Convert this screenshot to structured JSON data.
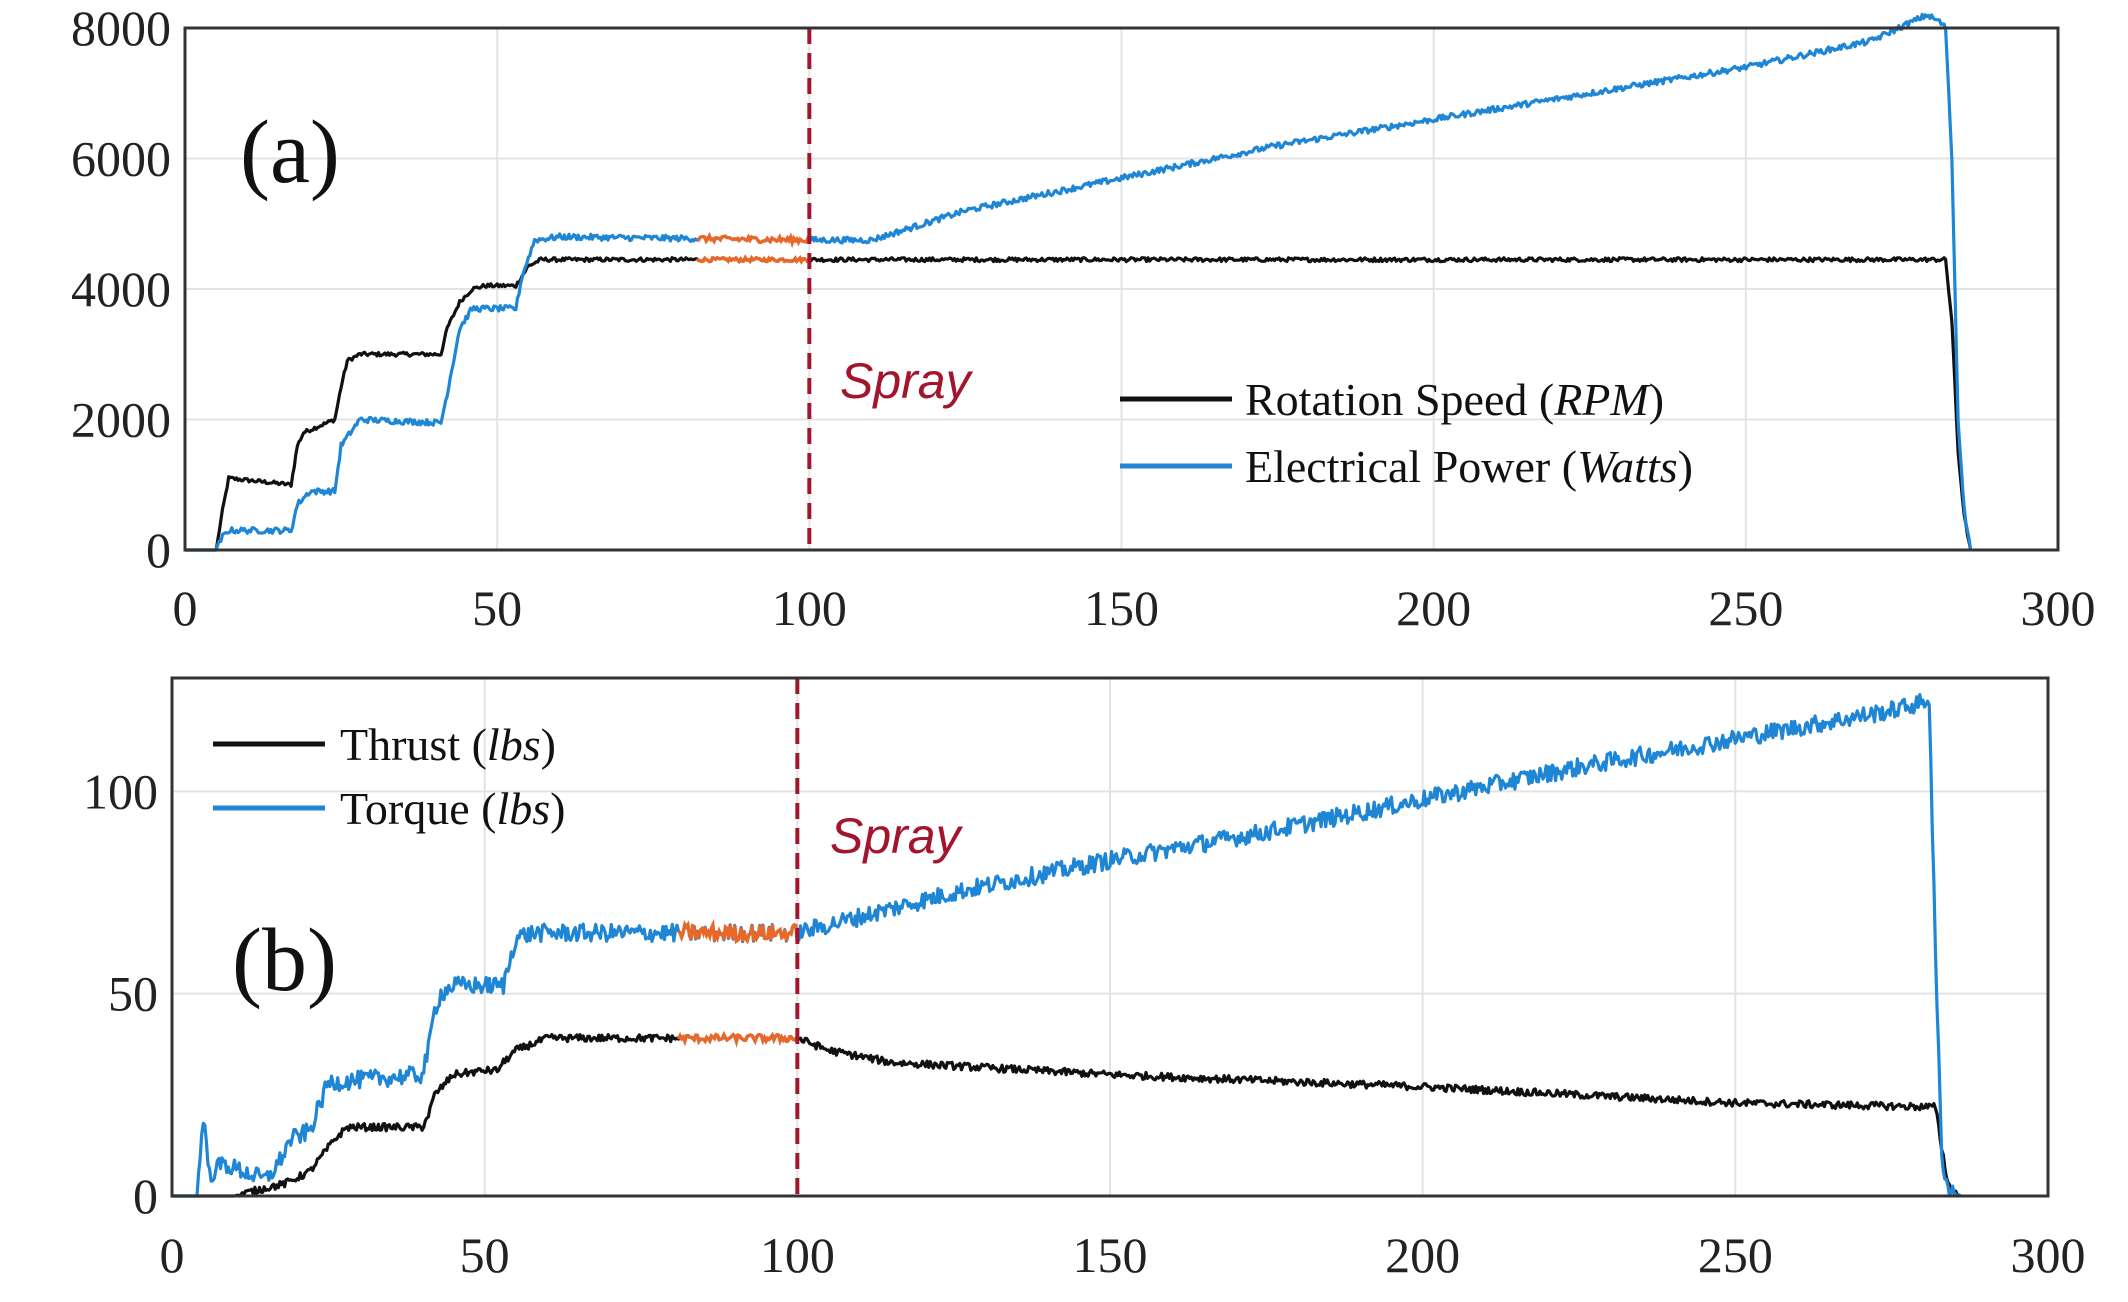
{
  "colors": {
    "black_series": "#111111",
    "blue_series": "#1f86d6",
    "spray_highlight": "#e8682a",
    "spray_line": "#a3142d",
    "grid": "#e3e3e3"
  },
  "chart_data": [
    {
      "type": "line",
      "panel_label": "(a)",
      "xlim": [
        0,
        300
      ],
      "ylim": [
        0,
        8000
      ],
      "xticks": [
        "0",
        "50",
        "100",
        "150",
        "200",
        "250",
        "300"
      ],
      "yticks": [
        "0",
        "2000",
        "4000",
        "6000",
        "8000"
      ],
      "grid": true,
      "legend": {
        "placement": "center-right",
        "entries": [
          {
            "label": "Rotation Speed (",
            "unit": "RPM",
            "close": ")",
            "series": "black"
          },
          {
            "label": "Electrical Power (",
            "unit": "Watts",
            "close": ")",
            "series": "blue"
          }
        ]
      },
      "annotation": {
        "text": "Spray",
        "x": 100
      },
      "highlight_range": [
        82,
        100
      ],
      "series": [
        {
          "name": "Rotation Speed (RPM)",
          "color_key": "black",
          "x": [
            0,
            5,
            6,
            7,
            17,
            18,
            19,
            24,
            25,
            26,
            28,
            41,
            42,
            44,
            46,
            48,
            53,
            54,
            55,
            57,
            60,
            100,
            150,
            200,
            250,
            282,
            283,
            284,
            285,
            286
          ],
          "y": [
            0,
            0,
            600,
            1100,
            1000,
            1600,
            1800,
            2000,
            2500,
            2900,
            3000,
            3000,
            3400,
            3800,
            4000,
            4050,
            4050,
            4200,
            4350,
            4450,
            4450,
            4450,
            4450,
            4450,
            4450,
            4450,
            3500,
            1500,
            500,
            0
          ],
          "noise": 30
        },
        {
          "name": "Electrical Power (Watts)",
          "color_key": "blue",
          "x": [
            0,
            5,
            6,
            7,
            17,
            18,
            20,
            24,
            25,
            28,
            41,
            42,
            44,
            46,
            53,
            54,
            56,
            60,
            100,
            110,
            125,
            150,
            175,
            200,
            225,
            250,
            270,
            279,
            281,
            282,
            283,
            284,
            285,
            286
          ],
          "y": [
            0,
            0,
            200,
            300,
            300,
            700,
            900,
            900,
            1600,
            2000,
            1950,
            2400,
            3400,
            3700,
            3700,
            4200,
            4750,
            4800,
            4750,
            4750,
            5200,
            5700,
            6200,
            6600,
            7000,
            7400,
            7800,
            8200,
            8100,
            8000,
            6000,
            2000,
            600,
            0
          ],
          "noise": 45
        }
      ]
    },
    {
      "type": "line",
      "panel_label": "(b)",
      "xlim": [
        0,
        300
      ],
      "ylim": [
        0,
        128
      ],
      "xticks": [
        "0",
        "50",
        "100",
        "150",
        "200",
        "250",
        "300"
      ],
      "yticks": [
        "0",
        "50",
        "100"
      ],
      "ytick_values": [
        0,
        50,
        100
      ],
      "grid": true,
      "legend": {
        "placement": "top-left",
        "entries": [
          {
            "label": "Thrust (",
            "unit": "lbs",
            "close": ")",
            "series": "black"
          },
          {
            "label": "Torque (",
            "unit": "lbs",
            "close": ")",
            "series": "blue"
          }
        ]
      },
      "annotation": {
        "text": "Spray",
        "x": 100
      },
      "highlight_range": [
        81,
        100
      ],
      "series": [
        {
          "name": "Thrust (lbs)",
          "color_key": "black",
          "x": [
            0,
            10,
            15,
            18,
            22,
            24,
            26,
            28,
            40,
            41,
            42,
            45,
            50,
            52,
            53,
            55,
            60,
            65,
            80,
            100,
            105,
            115,
            150,
            200,
            250,
            282,
            283,
            284,
            285,
            286
          ],
          "y": [
            0,
            0,
            2,
            3,
            6,
            10,
            14,
            17,
            17,
            20,
            25,
            30,
            31,
            31,
            33,
            36,
            39,
            39,
            39,
            39,
            36,
            33,
            30,
            27,
            23,
            22,
            12,
            3,
            1,
            0
          ],
          "noise": 0.9
        },
        {
          "name": "Torque (lbs)",
          "color_key": "blue",
          "x": [
            0,
            4,
            5,
            6,
            8,
            15,
            17,
            19,
            22,
            24,
            25,
            40,
            41,
            42,
            43,
            45,
            53,
            54,
            55,
            58,
            100,
            105,
            125,
            150,
            175,
            200,
            225,
            250,
            275,
            280,
            281,
            282,
            283,
            284,
            286
          ],
          "y": [
            0,
            0,
            20,
            5,
            8,
            4,
            8,
            14,
            16,
            24,
            28,
            30,
            36,
            46,
            50,
            52,
            52,
            58,
            64,
            65,
            65,
            67,
            75,
            83,
            90,
            98,
            106,
            113,
            120,
            122,
            123,
            60,
            10,
            2,
            0
          ],
          "noise": 2.2
        }
      ]
    }
  ]
}
